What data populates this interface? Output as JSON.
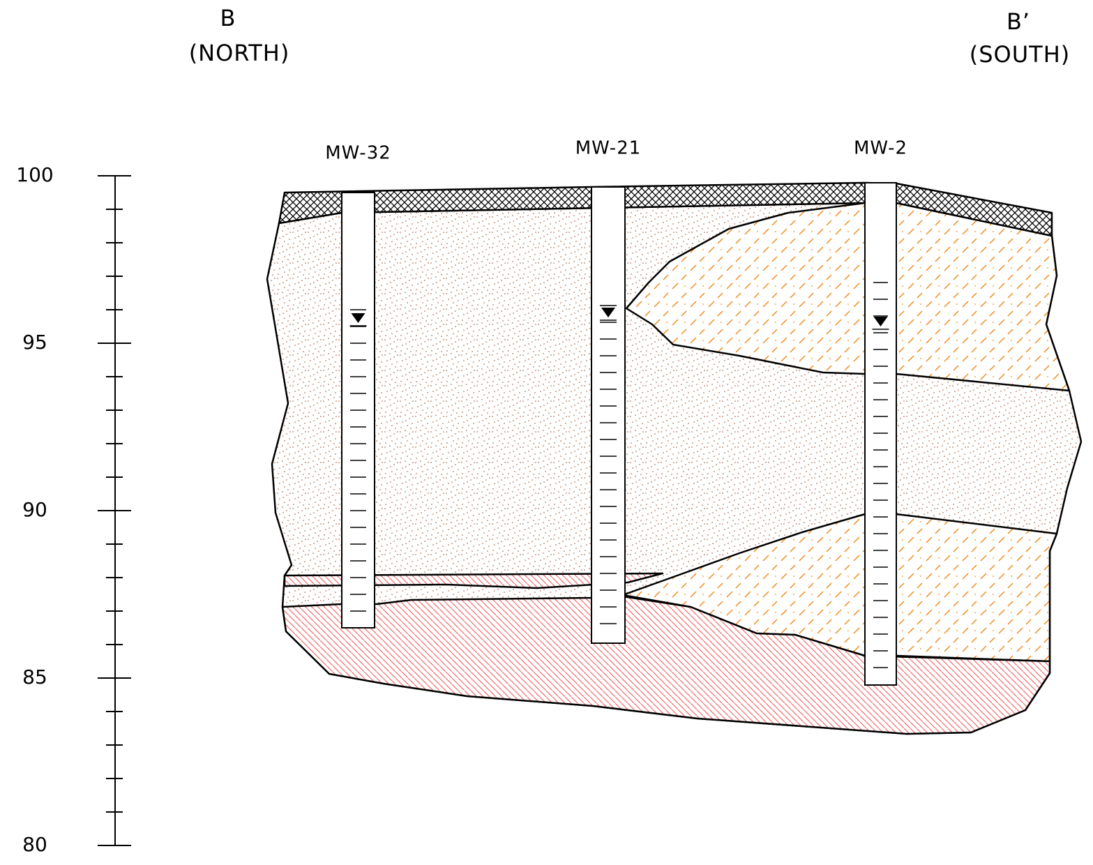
{
  "header": {
    "left": {
      "letter": "B",
      "direction": "(NORTH)"
    },
    "right": {
      "letter": "B’",
      "direction": "(SOUTH)"
    }
  },
  "wells": [
    {
      "label": "MW-32"
    },
    {
      "label": "MW-21"
    },
    {
      "label": "MW-2"
    }
  ],
  "scale": {
    "labels": [
      "100",
      "95",
      "90",
      "85",
      "80"
    ]
  }
}
